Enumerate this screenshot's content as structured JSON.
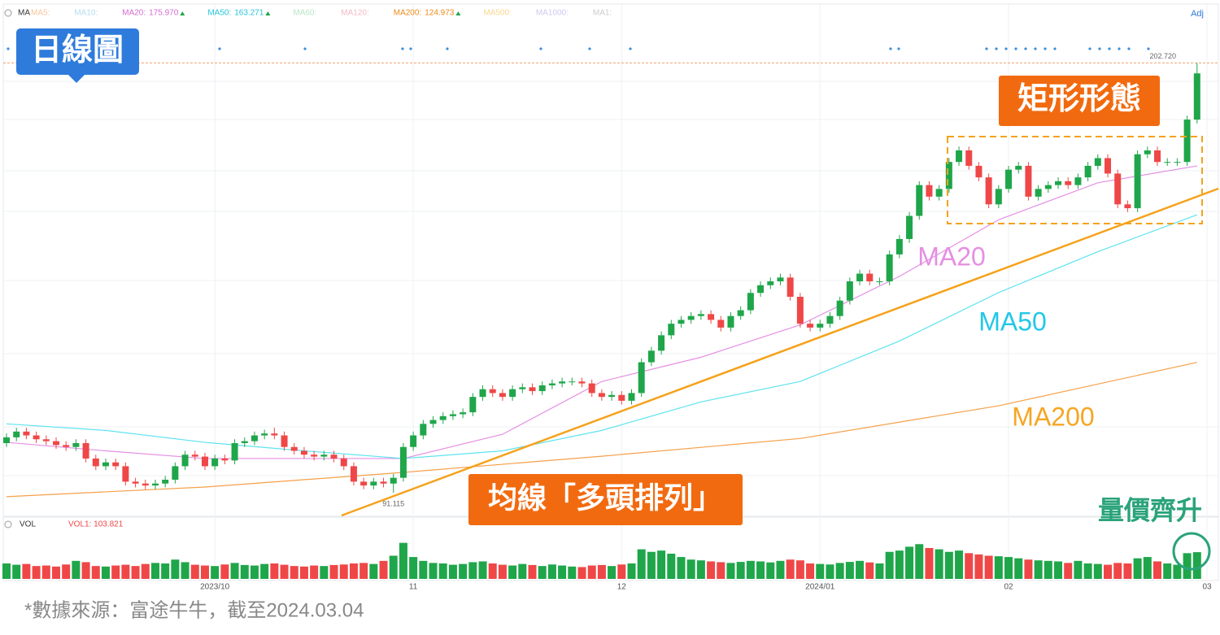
{
  "chart_data": {
    "type": "candlestick",
    "indicator_label": "MA",
    "adj_label": "Adj",
    "indicators": [
      {
        "name": "MA5:",
        "color": "#f9c49a"
      },
      {
        "name": "MA10:",
        "color": "#b5dcef"
      },
      {
        "name": "MA20:",
        "value": "175.970",
        "color": "#d56ad3"
      },
      {
        "name": "MA50:",
        "value": "163.271",
        "color": "#26c6d8"
      },
      {
        "name": "MA60:",
        "color": "#b8e6c8"
      },
      {
        "name": "MA120:",
        "color": "#f5b8c8"
      },
      {
        "name": "MA200:",
        "value": "124.973",
        "color": "#ef8a17"
      },
      {
        "name": "MA500:",
        "color": "#f7d990"
      },
      {
        "name": "MA1000:",
        "color": "#d0c8f0"
      },
      {
        "name": "MA1:",
        "color": "#cccccc"
      }
    ],
    "open": [
      104,
      105.5,
      107,
      106,
      105,
      104.5,
      103.5,
      103,
      104,
      100,
      98,
      99,
      98,
      94,
      93.5,
      93,
      93.5,
      94.5,
      98,
      101,
      100.5,
      98,
      100,
      99.5,
      104,
      104.5,
      106,
      106.5,
      106,
      103,
      102,
      101,
      100.5,
      101,
      100,
      98,
      94,
      93,
      94,
      93.5,
      95,
      103,
      106,
      109,
      110,
      111,
      111.5,
      112,
      116,
      118,
      117,
      116,
      118,
      118.5,
      117.5,
      119,
      119.5,
      120,
      120,
      119.5,
      117,
      116,
      116.5,
      115,
      117,
      125,
      128,
      132,
      135,
      136,
      137,
      137.5,
      136,
      134,
      137,
      138.5,
      143,
      145,
      146,
      147,
      142,
      135,
      134,
      135,
      137,
      141,
      146,
      148,
      146,
      146,
      153,
      157,
      163,
      171,
      168,
      170,
      177,
      180,
      176,
      173,
      166,
      170,
      175,
      176,
      168,
      170,
      171,
      172,
      171,
      173,
      176,
      178,
      174,
      166,
      165,
      179,
      180,
      177,
      177,
      177,
      188
    ],
    "high": [
      106.5,
      108,
      108,
      107,
      106,
      105.5,
      104.5,
      105,
      105,
      101,
      100,
      100,
      99,
      95,
      94.5,
      94.5,
      95.5,
      99,
      102,
      102,
      101.5,
      101,
      101,
      105,
      105.5,
      107,
      107.5,
      108,
      107,
      104,
      103,
      102,
      102,
      102,
      101,
      99,
      95,
      95,
      95,
      96,
      104,
      107,
      110,
      111,
      112,
      112.5,
      113,
      117,
      119,
      119,
      118,
      119,
      119.5,
      119.5,
      120,
      120.5,
      121,
      121,
      121,
      120.5,
      118,
      117.5,
      117.5,
      118,
      126,
      129,
      133,
      136,
      137,
      138,
      138.5,
      138.5,
      137,
      138,
      139.5,
      144,
      146,
      147,
      148,
      148,
      143,
      136,
      136,
      138,
      142,
      147,
      149,
      149,
      147,
      154,
      158,
      164,
      172,
      172,
      171,
      178,
      181,
      181,
      177,
      174,
      171,
      176,
      177,
      177,
      171,
      172,
      173,
      173,
      174,
      177,
      179,
      179,
      175,
      167,
      180,
      181,
      181,
      178,
      178,
      189,
      202.72
    ],
    "low": [
      103,
      104.5,
      105,
      104,
      103.5,
      102.5,
      102,
      102,
      99,
      97,
      97,
      97,
      93,
      92.5,
      92,
      92,
      92.5,
      93.5,
      97,
      99.5,
      97,
      97,
      98.5,
      98.5,
      103,
      103.5,
      105,
      105,
      102,
      101,
      100,
      99.5,
      99.5,
      99,
      97,
      93,
      92,
      92,
      92.5,
      91.115,
      94,
      102,
      105,
      108,
      109,
      110,
      110.5,
      111,
      115,
      116,
      115,
      115,
      117,
      116.5,
      116.5,
      118,
      118.5,
      119,
      118.5,
      116,
      115,
      115,
      114,
      114,
      116,
      124,
      127,
      131,
      134,
      135,
      136,
      135,
      133,
      133,
      136,
      137.5,
      142,
      144,
      145,
      141,
      134,
      133,
      133,
      134,
      136,
      140,
      145,
      145,
      145,
      145,
      152,
      156,
      162,
      167,
      167,
      169,
      176,
      175,
      172,
      165,
      165,
      169,
      174,
      167,
      167,
      169,
      170,
      170,
      170,
      172,
      175,
      173,
      165,
      164,
      164,
      178,
      176,
      176,
      176,
      176,
      187
    ],
    "close": [
      105.5,
      107,
      106,
      105,
      104.5,
      103.5,
      103,
      104,
      100,
      98,
      99,
      98,
      94,
      93.5,
      93,
      93.5,
      94.5,
      98,
      101,
      100.5,
      98,
      100,
      99.5,
      104,
      104.5,
      106,
      106.5,
      106,
      103,
      102,
      101,
      100.5,
      101,
      100,
      98,
      94,
      93,
      94,
      93.5,
      95,
      103,
      106,
      109,
      110,
      111,
      111.5,
      112,
      116,
      118,
      117,
      116,
      118,
      118.5,
      117.5,
      119,
      119.5,
      120,
      120,
      119.5,
      117,
      116,
      116.5,
      115,
      117,
      125,
      128,
      132,
      135,
      136,
      137,
      137.5,
      136,
      134,
      137,
      138.5,
      143,
      145,
      146,
      147,
      142,
      135,
      134,
      135,
      137,
      141,
      146,
      148,
      146,
      146,
      153,
      157,
      163,
      171,
      168,
      170,
      177,
      180,
      176,
      173,
      166,
      170,
      175,
      176,
      168,
      170,
      171,
      172,
      171,
      173,
      176,
      178,
      174,
      166,
      165,
      179,
      180,
      177,
      177,
      177,
      188,
      200
    ],
    "up_color": "#1fa64a",
    "down_color": "#ef4747",
    "ylim": [
      85,
      218
    ],
    "xlim": [
      0,
      121
    ],
    "xticks": [
      {
        "value": 21,
        "label": "2023/10"
      },
      {
        "value": 41,
        "label": "11"
      },
      {
        "value": 62,
        "label": "12"
      },
      {
        "value": 82,
        "label": "2024/01"
      },
      {
        "value": 101,
        "label": "02"
      },
      {
        "value": 121,
        "label": "03"
      }
    ],
    "ma_series": [
      {
        "name": "MA20",
        "color": "#e58fe3",
        "x": [
          0,
          10,
          20,
          30,
          40,
          50,
          60,
          70,
          80,
          90,
          100,
          110,
          120
        ],
        "values": [
          104.2,
          102,
          100,
          100,
          100,
          106.3,
          120,
          126.3,
          134.7,
          147.3,
          162,
          171.6,
          175.97
        ]
      },
      {
        "name": "MA50",
        "color": "#5fe3ef",
        "x": [
          0,
          10,
          20,
          30,
          40,
          50,
          60,
          70,
          80,
          90,
          100,
          110,
          120
        ],
        "values": [
          109,
          107.3,
          104.2,
          102,
          100,
          102,
          107.3,
          114.7,
          120,
          130.5,
          143.1,
          153.7,
          163.271
        ]
      },
      {
        "name": "MA200",
        "color": "#f5a04a",
        "x": [
          0,
          20,
          40,
          60,
          80,
          100,
          120
        ],
        "values": [
          90.1,
          92.6,
          96.4,
          100.6,
          105.2,
          113.7,
          124.973
        ]
      }
    ],
    "price_marks": [
      {
        "value": 202.72,
        "label": "202.720"
      },
      {
        "value": 91.115,
        "label": "91.115"
      }
    ],
    "volume": {
      "label": "VOL",
      "current_label": "VOL1: 103.821",
      "y2lim": [
        0,
        180
      ],
      "values": [
        60,
        55,
        58,
        50,
        52,
        48,
        56,
        70,
        65,
        50,
        48,
        52,
        55,
        50,
        58,
        62,
        60,
        75,
        65,
        55,
        52,
        50,
        56,
        62,
        54,
        52,
        58,
        60,
        55,
        50,
        48,
        52,
        50,
        54,
        56,
        60,
        62,
        58,
        70,
        90,
        140,
        85,
        70,
        62,
        60,
        55,
        58,
        65,
        68,
        60,
        55,
        52,
        58,
        54,
        50,
        56,
        52,
        48,
        46,
        52,
        54,
        50,
        56,
        60,
        115,
        105,
        110,
        98,
        85,
        75,
        72,
        68,
        65,
        62,
        66,
        70,
        68,
        64,
        70,
        75,
        72,
        60,
        58,
        56,
        62,
        66,
        70,
        64,
        60,
        105,
        110,
        125,
        135,
        120,
        115,
        105,
        110,
        100,
        95,
        90,
        88,
        85,
        80,
        75,
        72,
        70,
        68,
        62,
        70,
        60,
        58,
        55,
        62,
        60,
        80,
        85,
        68,
        60,
        55,
        100,
        103.821
      ]
    },
    "annotations": {
      "chart_period": "日線圖",
      "pattern": "矩形形態",
      "ma_alignment": "均線「多頭排列」",
      "volume_price": "量價齊升"
    },
    "footer": "*數據來源：富途牛牛，截至2024.03.04"
  }
}
